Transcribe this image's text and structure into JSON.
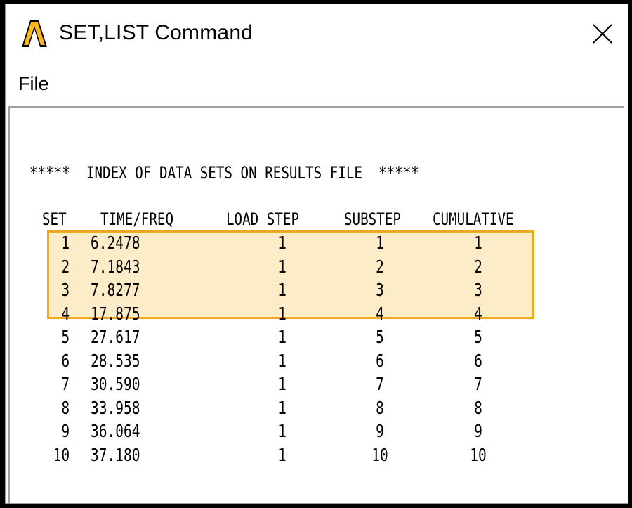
{
  "window": {
    "title": "SET,LIST Command",
    "close_icon": "close-icon",
    "logo_icon": "ansys-logo-icon",
    "accent_color": "#f0a820",
    "highlight_fill": "#fdecc8"
  },
  "menu": {
    "file": "File"
  },
  "listing": {
    "header": "*****  INDEX OF DATA SETS ON RESULTS FILE  *****",
    "columns": [
      "SET",
      "TIME/FREQ",
      "LOAD STEP",
      "SUBSTEP",
      "CUMULATIVE"
    ],
    "rows": [
      {
        "set": "1",
        "time": "6.2478",
        "load_step": "1",
        "substep": "1",
        "cumulative": "1"
      },
      {
        "set": "2",
        "time": "7.1843",
        "load_step": "1",
        "substep": "2",
        "cumulative": "2"
      },
      {
        "set": "3",
        "time": "7.8277",
        "load_step": "1",
        "substep": "3",
        "cumulative": "3"
      },
      {
        "set": "4",
        "time": "17.875",
        "load_step": "1",
        "substep": "4",
        "cumulative": "4"
      },
      {
        "set": "5",
        "time": "27.617",
        "load_step": "1",
        "substep": "5",
        "cumulative": "5"
      },
      {
        "set": "6",
        "time": "28.535",
        "load_step": "1",
        "substep": "6",
        "cumulative": "6"
      },
      {
        "set": "7",
        "time": "30.590",
        "load_step": "1",
        "substep": "7",
        "cumulative": "7"
      },
      {
        "set": "8",
        "time": "33.958",
        "load_step": "1",
        "substep": "8",
        "cumulative": "8"
      },
      {
        "set": "9",
        "time": "36.064",
        "load_step": "1",
        "substep": "9",
        "cumulative": "9"
      },
      {
        "set": "10",
        "time": "37.180",
        "load_step": "1",
        "substep": "10",
        "cumulative": "10"
      }
    ]
  }
}
